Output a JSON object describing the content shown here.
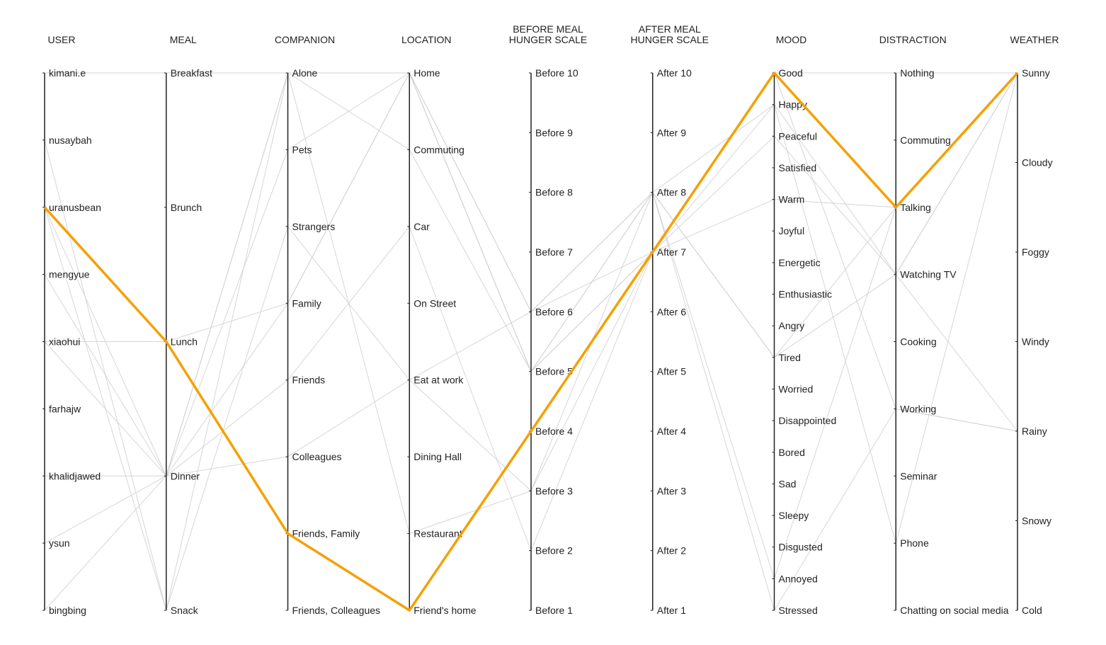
{
  "chart_data": {
    "type": "parallel-coordinates",
    "axes": [
      {
        "name": "USER",
        "title_lines": [
          "USER"
        ],
        "values": [
          "kimani.e",
          "nusaybah",
          "uranusbean",
          "mengyue",
          "xiaohui",
          "farhajw",
          "khalidjawed",
          "ysun",
          "bingbing"
        ]
      },
      {
        "name": "MEAL",
        "title_lines": [
          "MEAL"
        ],
        "values": [
          "Breakfast",
          "Brunch",
          "Lunch",
          "Dinner",
          "Snack"
        ]
      },
      {
        "name": "COMPANION",
        "title_lines": [
          "COMPANION"
        ],
        "values": [
          "Alone",
          "Pets",
          "Strangers",
          "Family",
          "Friends",
          "Colleagues",
          "Friends, Family",
          "Friends, Colleagues"
        ]
      },
      {
        "name": "LOCATION",
        "title_lines": [
          "LOCATION"
        ],
        "values": [
          "Home",
          "Commuting",
          "Car",
          "On Street",
          "Eat at work",
          "Dining Hall",
          "Restaurant",
          "Friend's home"
        ]
      },
      {
        "name": "BEFORE MEAL HUNGER SCALE",
        "title_lines": [
          "BEFORE MEAL",
          "HUNGER SCALE"
        ],
        "values": [
          "Before 10",
          "Before 9",
          "Before 8",
          "Before 7",
          "Before 6",
          "Before 5",
          "Before 4",
          "Before 3",
          "Before 2",
          "Before 1"
        ]
      },
      {
        "name": "AFTER MEAL HUNGER SCALE",
        "title_lines": [
          "AFTER MEAL",
          "HUNGER SCALE"
        ],
        "values": [
          "After 10",
          "After 9",
          "After 8",
          "After 7",
          "After 6",
          "After 5",
          "After 4",
          "After 3",
          "After 2",
          "After 1"
        ]
      },
      {
        "name": "MOOD",
        "title_lines": [
          "MOOD"
        ],
        "values": [
          "Good",
          "Happy",
          "Peaceful",
          "Satisfied",
          "Warm",
          "Joyful",
          "Energetic",
          "Enthusiastic",
          "Angry",
          "Tired",
          "Worried",
          "Disappointed",
          "Bored",
          "Sad",
          "Sleepy",
          "Disgusted",
          "Annoyed",
          "Stressed"
        ]
      },
      {
        "name": "DISTRACTION",
        "title_lines": [
          "DISTRACTION"
        ],
        "values": [
          "Nothing",
          "Commuting",
          "Talking",
          "Watching TV",
          "Cooking",
          "Working",
          "Seminar",
          "Phone",
          "Chatting on social media"
        ]
      },
      {
        "name": "WEATHER",
        "title_lines": [
          "WEATHER"
        ],
        "values": [
          "Sunny",
          "Cloudy",
          "Foggy",
          "Windy",
          "Rainy",
          "Snowy",
          "Cold"
        ]
      }
    ],
    "records": [
      {
        "highlight": false,
        "values": [
          "kimani.e",
          "Breakfast",
          "Alone",
          "Home",
          "Before 5",
          "After 7",
          "Good",
          "Nothing",
          "Sunny"
        ]
      },
      {
        "highlight": false,
        "values": [
          "nusaybah",
          "Snack",
          "Strangers",
          "Eat at work",
          "Before 3",
          "After 8",
          "Tired",
          "Watching TV",
          "Sunny"
        ]
      },
      {
        "highlight": false,
        "values": [
          "uranusbean",
          "Dinner",
          "Family",
          "Home",
          "Before 6",
          "After 7",
          "Warm",
          "Talking",
          "Sunny"
        ]
      },
      {
        "highlight": false,
        "values": [
          "uranusbean",
          "Snack",
          "Alone",
          "Home",
          "Before 5",
          "After 8",
          "Tired",
          "Talking",
          "Sunny"
        ]
      },
      {
        "highlight": false,
        "values": [
          "mengyue",
          "Dinner",
          "Alone",
          "Restaurant",
          "Before 3",
          "After 7",
          "Good",
          "Working",
          "Rainy"
        ]
      },
      {
        "highlight": false,
        "values": [
          "xiaohui",
          "Lunch",
          "Family",
          "Home",
          "Before 6",
          "After 8",
          "Annoyed",
          "Talking",
          "Sunny"
        ]
      },
      {
        "highlight": false,
        "values": [
          "xiaohui",
          "Dinner",
          "Pets",
          "Home",
          "Before 5",
          "After 7",
          "Happy",
          "Phone",
          "Sunny"
        ]
      },
      {
        "highlight": false,
        "values": [
          "khalidjawed",
          "Dinner",
          "Colleagues",
          "Eat at work",
          "Before 6",
          "After 8",
          "Happy",
          "Watching TV",
          "Rainy"
        ]
      },
      {
        "highlight": false,
        "values": [
          "ysun",
          "Dinner",
          "Friends",
          "Car",
          "Before 2",
          "After 7",
          "Peaceful",
          "Watching TV",
          "Sunny"
        ]
      },
      {
        "highlight": false,
        "values": [
          "bingbing",
          "Dinner",
          "Alone",
          "Commuting",
          "Before 5",
          "After 8",
          "Stressed",
          "Working",
          "Rainy"
        ]
      },
      {
        "highlight": true,
        "values": [
          "uranusbean",
          "Lunch",
          "Friends, Family",
          "Friend's home",
          "Before 4",
          "After 7",
          "Good",
          "Talking",
          "Sunny"
        ]
      }
    ]
  }
}
